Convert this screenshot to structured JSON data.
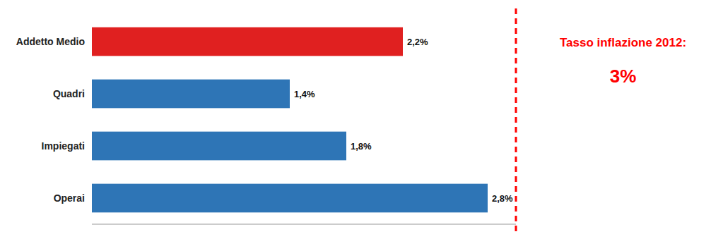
{
  "chart_data": {
    "type": "bar",
    "orientation": "horizontal",
    "categories": [
      "Operai",
      "Impiegati",
      "Quadri",
      "Addetto Medio"
    ],
    "values": [
      2.8,
      1.8,
      1.4,
      2.2
    ],
    "value_labels": [
      "2,8%",
      "1,8%",
      "1,4%",
      "2,2%"
    ],
    "colors": [
      "#2E75B6",
      "#2E75B6",
      "#2E75B6",
      "#E02020"
    ],
    "xlim": [
      0,
      3.0
    ],
    "data_labels": true,
    "tick_labels": "y",
    "grid": false,
    "reference_line": {
      "value": 3.0
    },
    "annotations": [
      {
        "text": "Tasso inflazione  2012:"
      },
      {
        "text": "3%"
      }
    ]
  }
}
